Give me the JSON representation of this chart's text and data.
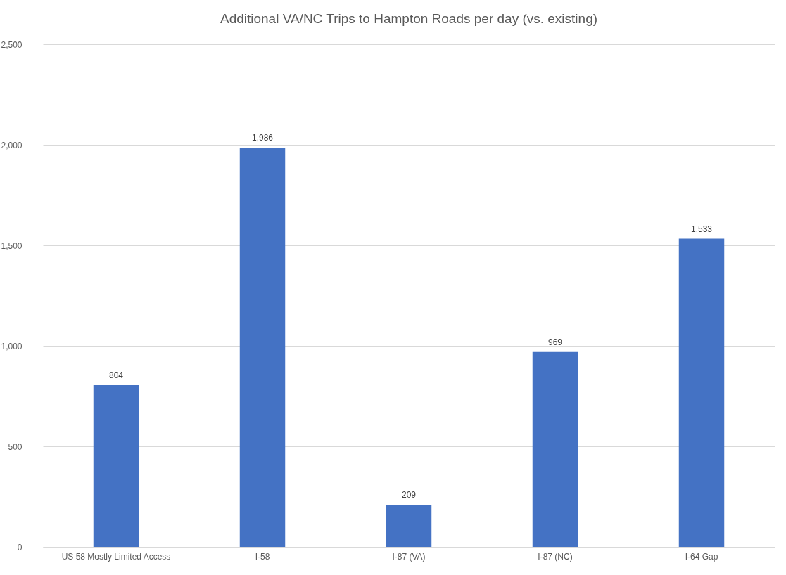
{
  "chart_data": {
    "type": "bar",
    "title": "Additional VA/NC Trips to Hampton Roads per day (vs. existing)",
    "categories": [
      "US 58 Mostly Limited Access",
      "I-58",
      "I-87 (VA)",
      "I-87 (NC)",
      "I-64 Gap"
    ],
    "values": [
      804,
      1986,
      209,
      969,
      1533
    ],
    "color": "#4472c4",
    "ylim": [
      0,
      2500
    ],
    "yticks": [
      {
        "value": 0,
        "label": "0"
      },
      {
        "value": 500,
        "label": "500"
      },
      {
        "value": 1000,
        "label": "1,000"
      },
      {
        "value": 1500,
        "label": "1,500"
      },
      {
        "value": 2000,
        "label": "2,000"
      },
      {
        "value": 2500,
        "label": "2,500"
      }
    ],
    "value_labels": [
      "804",
      "1,986",
      "209",
      "969",
      "1,533"
    ],
    "grid": "y"
  }
}
